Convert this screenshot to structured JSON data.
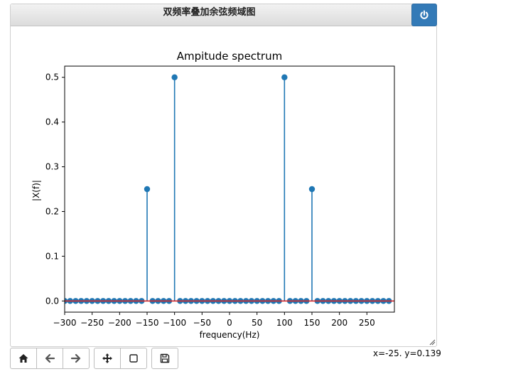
{
  "window": {
    "title": "双频率叠加余弦频域图",
    "power_icon": "power-icon"
  },
  "chart_data": {
    "type": "stem",
    "title": "Ampitude spectrum",
    "xlabel": "frequency(Hz)",
    "ylabel": "|X(f)|",
    "xlim": [
      -300,
      300
    ],
    "ylim": [
      -0.025,
      0.525
    ],
    "xticks": [
      -300,
      -250,
      -200,
      -150,
      -100,
      -50,
      0,
      50,
      100,
      150,
      200,
      250
    ],
    "xtick_labels": [
      "−300",
      "−250",
      "−200",
      "−150",
      "−100",
      "−50",
      "0",
      "50",
      "100",
      "150",
      "200",
      "250"
    ],
    "yticks": [
      0.0,
      0.1,
      0.2,
      0.3,
      0.4,
      0.5
    ],
    "ytick_labels": [
      "0.0",
      "0.1",
      "0.2",
      "0.3",
      "0.4",
      "0.5"
    ],
    "sample_spacing": 10,
    "x_start": -300,
    "x_end": 290,
    "peaks": [
      {
        "x": -150,
        "y": 0.25
      },
      {
        "x": -100,
        "y": 0.5
      },
      {
        "x": 100,
        "y": 0.5
      },
      {
        "x": 150,
        "y": 0.25
      }
    ],
    "marker_color": "#1f77b4",
    "baseline_color": "#d62728",
    "grid": false
  },
  "toolbar": {
    "buttons": [
      {
        "name": "home-button",
        "icon": "home-icon"
      },
      {
        "name": "back-button",
        "icon": "arrow-left-icon"
      },
      {
        "name": "forward-button",
        "icon": "arrow-right-icon"
      },
      {
        "name": "pan-button",
        "icon": "move-icon"
      },
      {
        "name": "zoom-button",
        "icon": "rectangle-icon"
      },
      {
        "name": "save-button",
        "icon": "floppy-disk-icon"
      }
    ]
  },
  "status": {
    "coordinates": "x=-25. y=0.139"
  }
}
